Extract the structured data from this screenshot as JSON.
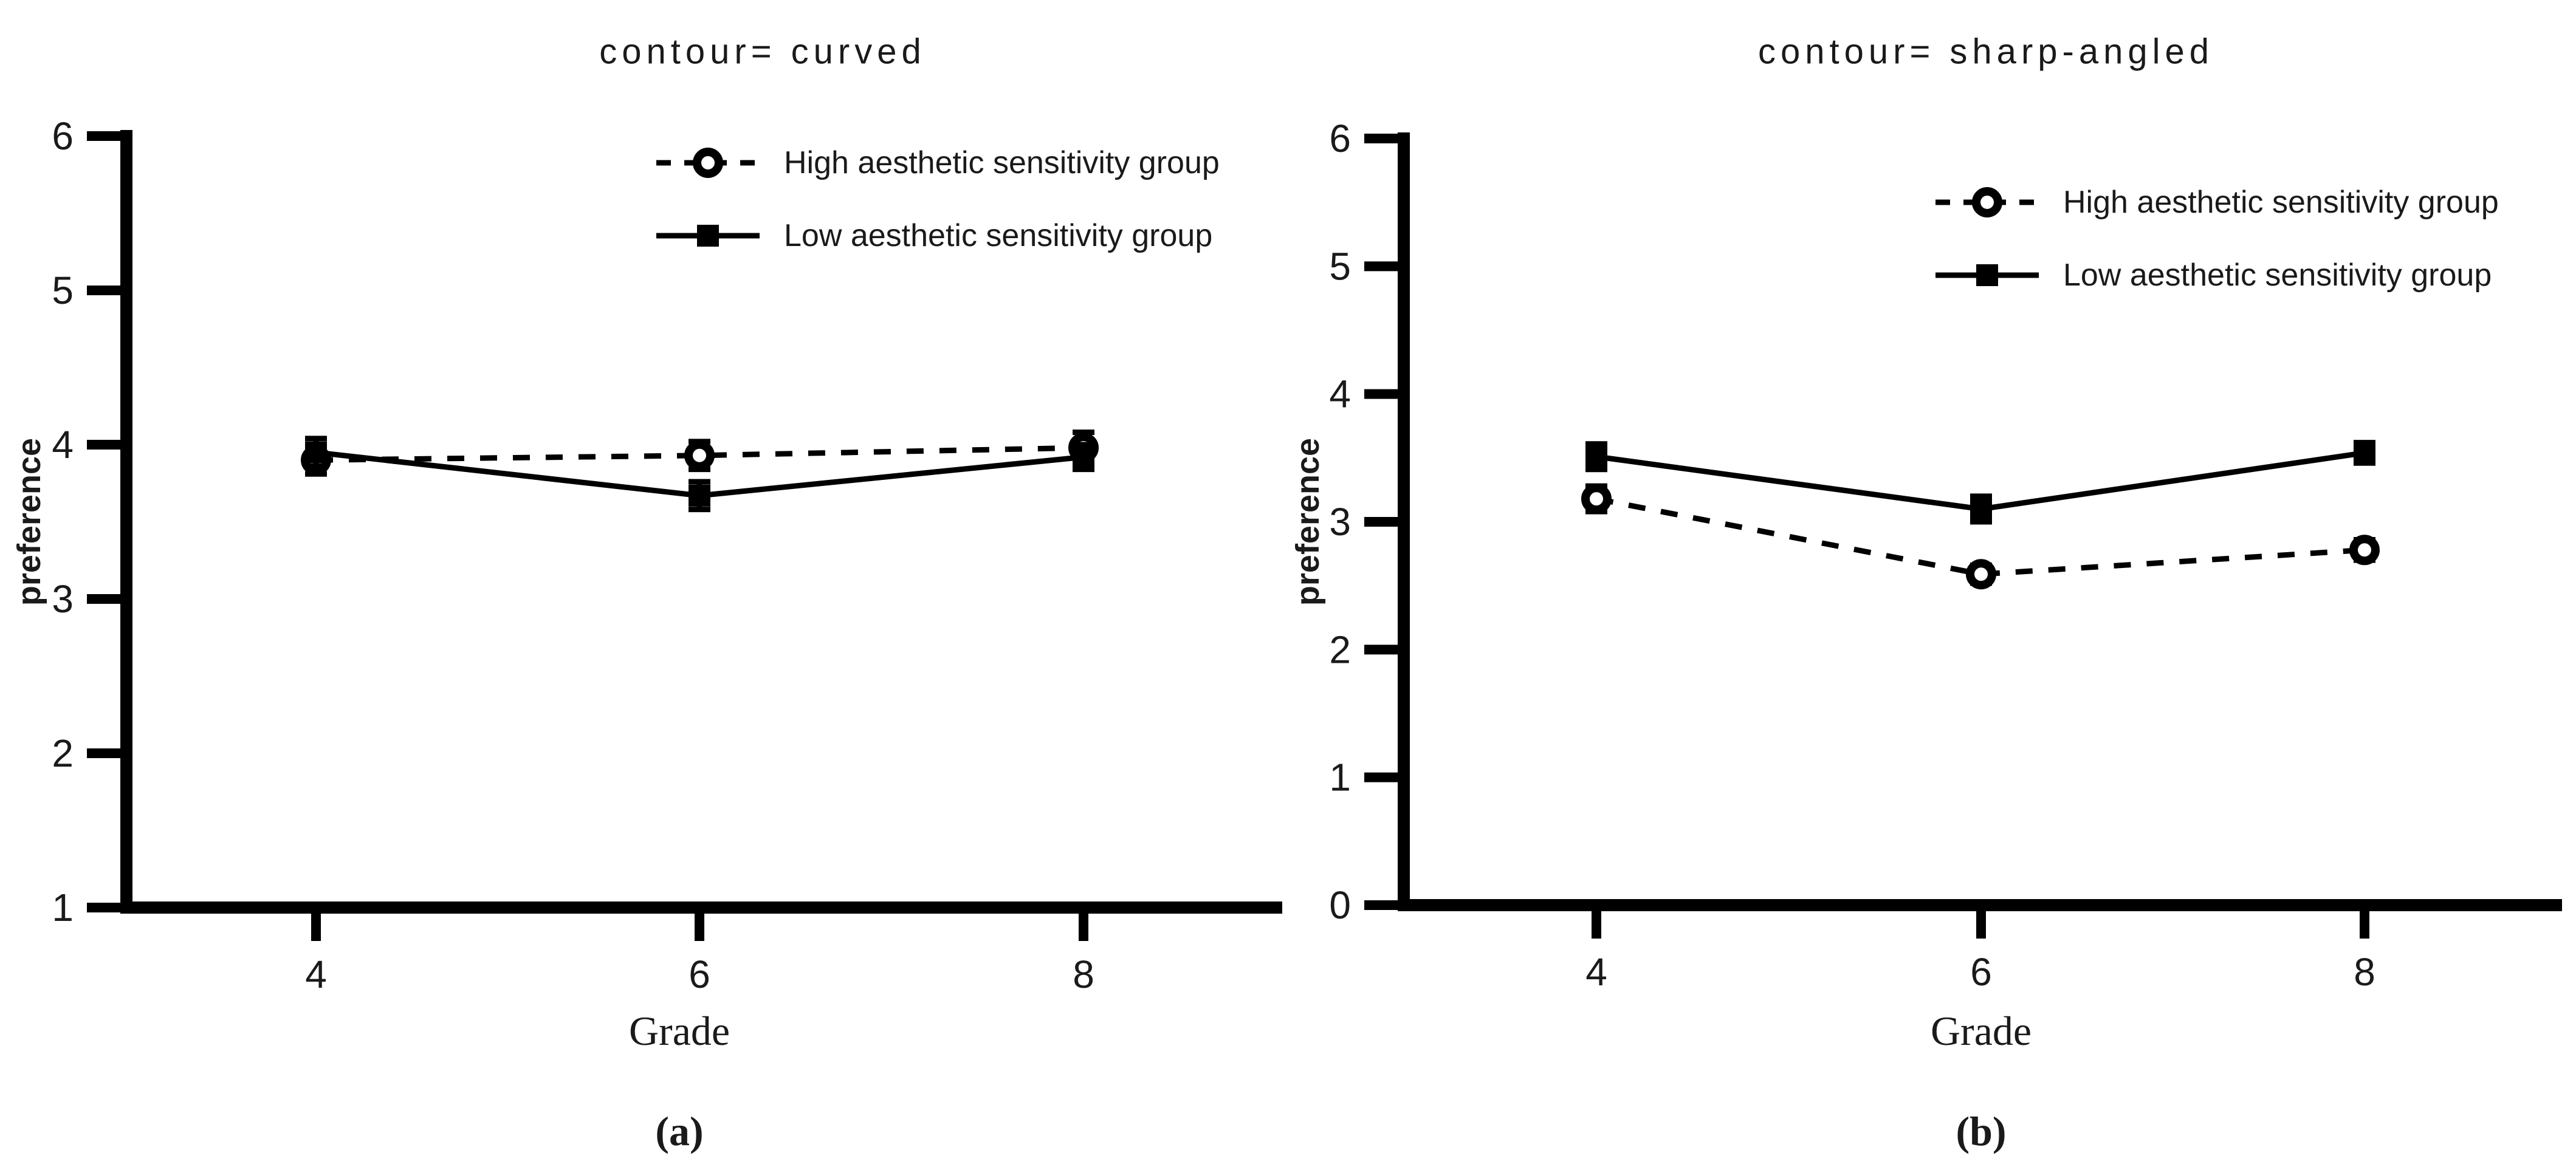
{
  "figure": {
    "background": "#ffffff",
    "ink_color": "#000000",
    "text_color": "#1a1a1a"
  },
  "chart_data": [
    {
      "type": "line",
      "panel_caption": "(a)",
      "title": "contour= curved",
      "xlabel": "Grade",
      "ylabel": "preference",
      "categories": [
        "4",
        "6",
        "8"
      ],
      "ylim": [
        1,
        6
      ],
      "yticks": [
        "1",
        "2",
        "3",
        "4",
        "5",
        "6"
      ],
      "grid": false,
      "legend_position": "top-right-inside",
      "series": [
        {
          "name": "High aesthetic sensitivity group",
          "line_style": "dashed",
          "marker": "open-circle",
          "values": [
            3.9,
            3.93,
            3.98
          ],
          "errors": [
            0.09,
            0.09,
            0.1
          ]
        },
        {
          "name": "Low aesthetic sensitivity group",
          "line_style": "solid",
          "marker": "filled-square",
          "values": [
            3.95,
            3.67,
            3.92
          ],
          "errors": [
            0.09,
            0.09,
            0.08
          ]
        }
      ]
    },
    {
      "type": "line",
      "panel_caption": "(b)",
      "title": "contour= sharp-angled",
      "xlabel": "Grade",
      "ylabel": "preference",
      "categories": [
        "4",
        "6",
        "8"
      ],
      "ylim": [
        0,
        6
      ],
      "yticks": [
        "0",
        "1",
        "2",
        "3",
        "4",
        "5",
        "6"
      ],
      "grid": false,
      "legend_position": "top-right-inside",
      "series": [
        {
          "name": "High aesthetic sensitivity group",
          "line_style": "dashed",
          "marker": "open-circle",
          "values": [
            3.18,
            2.59,
            2.78
          ],
          "errors": [
            0.1,
            0.07,
            0.08
          ]
        },
        {
          "name": "Low aesthetic sensitivity group",
          "line_style": "solid",
          "marker": "filled-square",
          "values": [
            3.51,
            3.1,
            3.54
          ],
          "errors": [
            0.1,
            0.1,
            0.08
          ]
        }
      ]
    }
  ]
}
